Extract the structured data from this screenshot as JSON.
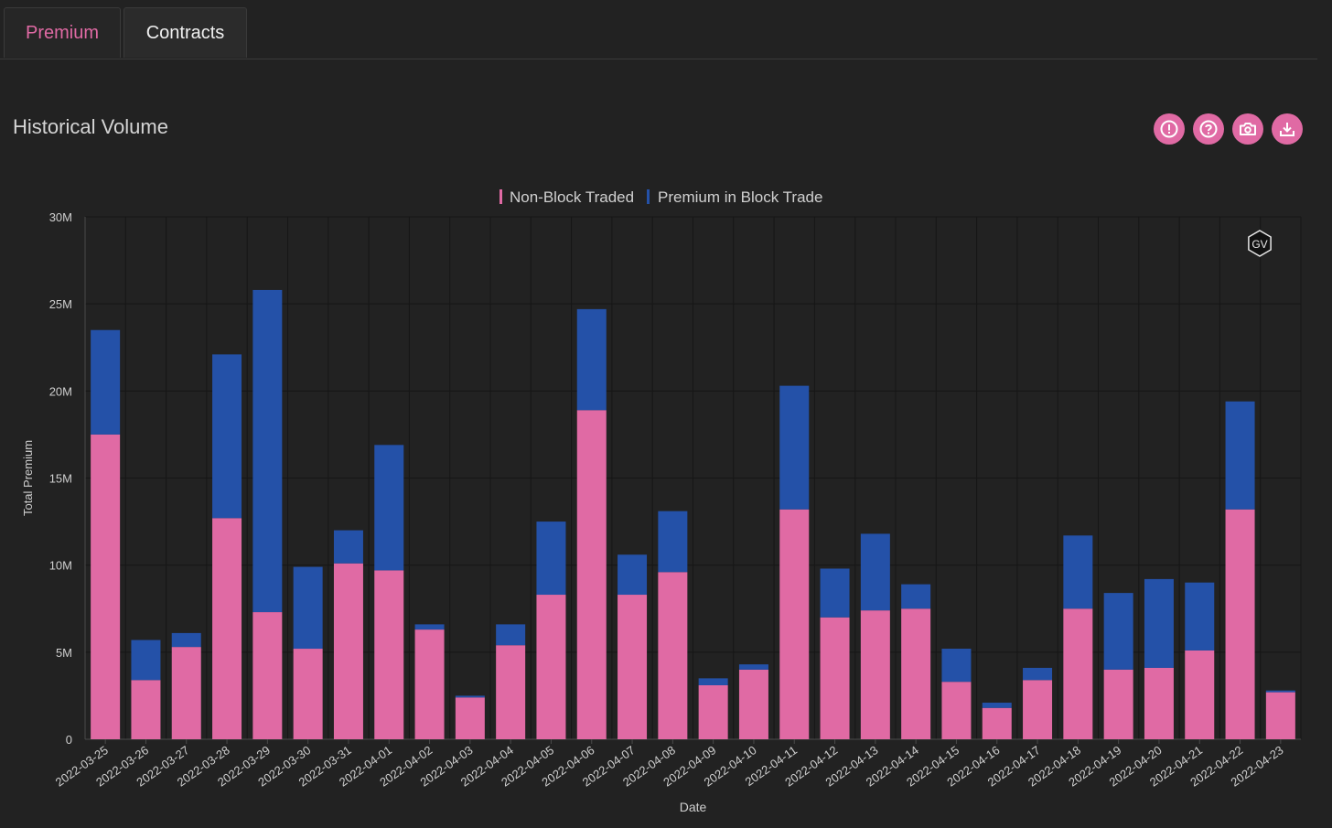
{
  "tabs": [
    {
      "label": "Premium",
      "active": true
    },
    {
      "label": "Contracts",
      "active": false
    }
  ],
  "section_title": "Historical Volume",
  "toolbar_icons": [
    "info-icon",
    "help-icon",
    "camera-icon",
    "download-icon"
  ],
  "watermark": "GV",
  "colors": {
    "accent": "#e06aa4",
    "non_block": "#e06aa4",
    "block": "#2451a8",
    "background": "#222222"
  },
  "chart_data": {
    "type": "bar",
    "stacked": true,
    "xlabel": "Date",
    "ylabel": "Total Premium",
    "ylim": [
      0,
      30000000
    ],
    "yticks": [
      0,
      5000000,
      10000000,
      15000000,
      20000000,
      25000000,
      30000000
    ],
    "ytick_labels": [
      "0",
      "5M",
      "10M",
      "15M",
      "20M",
      "25M",
      "30M"
    ],
    "legend_position": "top-center",
    "grid": true,
    "categories": [
      "2022-03-25",
      "2022-03-26",
      "2022-03-27",
      "2022-03-28",
      "2022-03-29",
      "2022-03-30",
      "2022-03-31",
      "2022-04-01",
      "2022-04-02",
      "2022-04-03",
      "2022-04-04",
      "2022-04-05",
      "2022-04-06",
      "2022-04-07",
      "2022-04-08",
      "2022-04-09",
      "2022-04-10",
      "2022-04-11",
      "2022-04-12",
      "2022-04-13",
      "2022-04-14",
      "2022-04-15",
      "2022-04-16",
      "2022-04-17",
      "2022-04-18",
      "2022-04-19",
      "2022-04-20",
      "2022-04-21",
      "2022-04-22",
      "2022-04-23"
    ],
    "series": [
      {
        "name": "Non-Block Traded",
        "color": "#e06aa4",
        "values": [
          17500000,
          3400000,
          5300000,
          12700000,
          7300000,
          5200000,
          10100000,
          9700000,
          6300000,
          2400000,
          5400000,
          8300000,
          18900000,
          8300000,
          9600000,
          3100000,
          4000000,
          13200000,
          7000000,
          7400000,
          7500000,
          3300000,
          1800000,
          3400000,
          7500000,
          4000000,
          4100000,
          5100000,
          13200000,
          2700000
        ]
      },
      {
        "name": "Premium in Block Trade",
        "color": "#2451a8",
        "values": [
          6000000,
          2300000,
          800000,
          9400000,
          18500000,
          4700000,
          1900000,
          7200000,
          300000,
          100000,
          1200000,
          4200000,
          5800000,
          2300000,
          3500000,
          400000,
          300000,
          7100000,
          2800000,
          4400000,
          1400000,
          1900000,
          300000,
          700000,
          4200000,
          4400000,
          5100000,
          3900000,
          6200000,
          100000
        ]
      }
    ]
  }
}
